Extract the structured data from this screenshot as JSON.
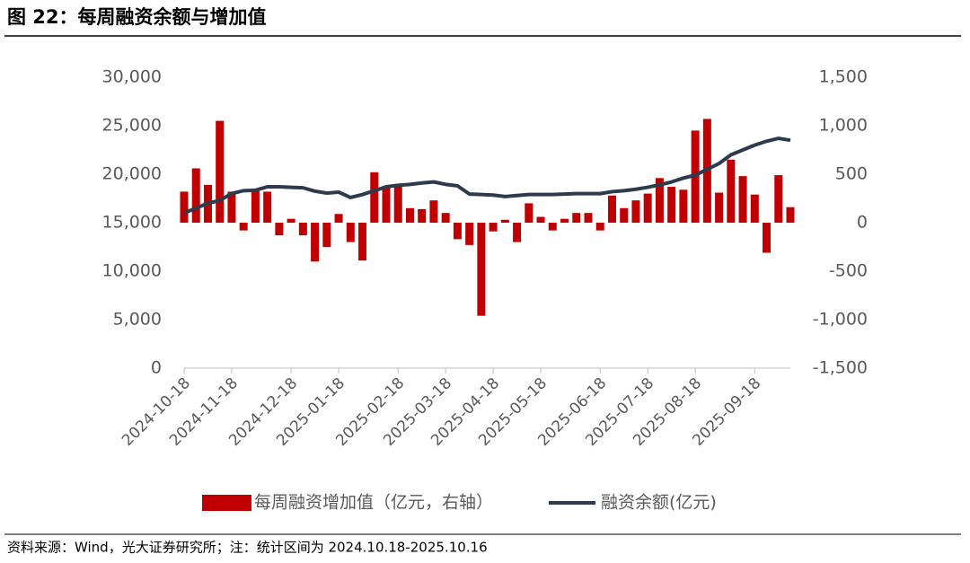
{
  "header": {
    "title": "图 22：每周融资余额与增加值"
  },
  "chart_data": {
    "type": "combo",
    "categories": [
      "2024-10-18",
      null,
      null,
      null,
      "2024-11-18",
      null,
      null,
      null,
      null,
      "2024-12-18",
      null,
      null,
      null,
      "2025-01-18",
      null,
      null,
      null,
      null,
      "2025-02-18",
      null,
      null,
      null,
      "2025-03-18",
      null,
      null,
      null,
      "2025-04-18",
      null,
      null,
      null,
      "2025-05-18",
      null,
      null,
      null,
      null,
      "2025-06-18",
      null,
      null,
      null,
      "2025-07-18",
      null,
      null,
      null,
      "2025-08-18",
      null,
      null,
      null,
      null,
      "2025-09-18",
      null,
      null,
      null
    ],
    "series": [
      {
        "name": "每周融资增加值（亿元，右轴）",
        "type": "bar",
        "axis": "y2",
        "color": "#c00000",
        "values": [
          320,
          560,
          390,
          1050,
          320,
          -80,
          330,
          320,
          -130,
          40,
          -130,
          -400,
          -250,
          90,
          -200,
          -390,
          520,
          360,
          370,
          150,
          140,
          230,
          100,
          -170,
          -230,
          -960,
          -90,
          30,
          -200,
          200,
          60,
          -80,
          40,
          100,
          100,
          -80,
          280,
          150,
          230,
          300,
          460,
          370,
          340,
          950,
          1070,
          310,
          650,
          480,
          290,
          -310,
          490,
          160
        ]
      },
      {
        "name": "融资余额(亿元)",
        "type": "line",
        "axis": "y",
        "color": "#2e3a4e",
        "values": [
          16000,
          16500,
          17000,
          17300,
          18000,
          18300,
          18350,
          18700,
          18700,
          18650,
          18600,
          18250,
          18050,
          18150,
          17600,
          17900,
          18300,
          18700,
          18850,
          18950,
          19100,
          19200,
          18950,
          18800,
          17950,
          17900,
          17850,
          17700,
          17800,
          17900,
          17900,
          17900,
          17950,
          18000,
          18000,
          18000,
          18200,
          18300,
          18450,
          18650,
          18900,
          19200,
          19600,
          19900,
          20500,
          21100,
          22000,
          22500,
          23000,
          23400,
          23700,
          23500
        ]
      }
    ],
    "ylim": [
      0,
      30000
    ],
    "yticks": [
      0,
      {
        "value": 5000,
        "label": "5,000"
      },
      {
        "value": 10000,
        "label": "10,000"
      },
      {
        "value": 15000,
        "label": "15,000"
      },
      {
        "value": 20000,
        "label": "20,000"
      },
      {
        "value": 25000,
        "label": "25,000"
      },
      {
        "value": 30000,
        "label": "30,000"
      }
    ],
    "y2lim": [
      -1500,
      1500
    ],
    "y2ticks": [
      {
        "value": -1500,
        "label": "-1,500"
      },
      {
        "value": -1000,
        "label": "-1,000"
      },
      -500,
      0,
      500,
      {
        "value": 1000,
        "label": "1,000"
      },
      {
        "value": 1500,
        "label": "1,500"
      }
    ],
    "legend": "bottom"
  },
  "footer": {
    "source": "资料来源：Wind，光大证券研究所；注：统计区间为 2024.10.18-2025.10.16"
  }
}
